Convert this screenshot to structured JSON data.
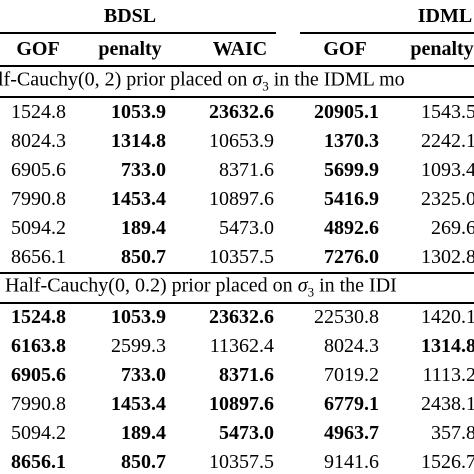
{
  "header": {
    "groups": [
      "BDSL",
      "IDML"
    ],
    "columns": [
      "GOF",
      "penalty",
      "WAIC",
      "GOF",
      "penalty"
    ]
  },
  "sections": [
    {
      "caption": {
        "before": "lf-Cauchy(0, 2) prior placed on ",
        "symbol": "σ",
        "subscript": "3",
        "after": " in the IDML mo"
      },
      "rows": [
        [
          {
            "text": "1524.8",
            "bold": false
          },
          {
            "text": "1053.9",
            "bold": true
          },
          {
            "text": "23632.6",
            "bold": true
          },
          {
            "text": "20905.1",
            "bold": true
          },
          {
            "text": "1543.5",
            "bold": false
          }
        ],
        [
          {
            "text": "8024.3",
            "bold": false
          },
          {
            "text": "1314.8",
            "bold": true
          },
          {
            "text": "10653.9",
            "bold": false
          },
          {
            "text": "1370.3",
            "bold": true
          },
          {
            "text": "2242.1",
            "bold": false
          }
        ],
        [
          {
            "text": "6905.6",
            "bold": false
          },
          {
            "text": "733.0",
            "bold": true
          },
          {
            "text": "8371.6",
            "bold": false
          },
          {
            "text": "5699.9",
            "bold": true
          },
          {
            "text": "1093.4",
            "bold": false
          }
        ],
        [
          {
            "text": "7990.8",
            "bold": false
          },
          {
            "text": "1453.4",
            "bold": true
          },
          {
            "text": "10897.6",
            "bold": false
          },
          {
            "text": "5416.9",
            "bold": true
          },
          {
            "text": "2325.0",
            "bold": false
          }
        ],
        [
          {
            "text": "5094.2",
            "bold": false
          },
          {
            "text": "189.4",
            "bold": true
          },
          {
            "text": "5473.0",
            "bold": false
          },
          {
            "text": "4892.6",
            "bold": true
          },
          {
            "text": "269.6",
            "bold": false
          }
        ],
        [
          {
            "text": "8656.1",
            "bold": false
          },
          {
            "text": "850.7",
            "bold": true
          },
          {
            "text": "10357.5",
            "bold": false
          },
          {
            "text": "7276.0",
            "bold": true
          },
          {
            "text": "1302.8",
            "bold": false
          }
        ]
      ]
    },
    {
      "caption": {
        "before": "Half-Cauchy(0, 0.2) prior placed on ",
        "symbol": "σ",
        "subscript": "3",
        "after": " in the IDI"
      },
      "rows": [
        [
          {
            "text": "1524.8",
            "bold": true
          },
          {
            "text": "1053.9",
            "bold": true
          },
          {
            "text": "23632.6",
            "bold": true
          },
          {
            "text": "22530.8",
            "bold": false
          },
          {
            "text": "1420.1",
            "bold": false
          }
        ],
        [
          {
            "text": "6163.8",
            "bold": true
          },
          {
            "text": "2599.3",
            "bold": false
          },
          {
            "text": "11362.4",
            "bold": false
          },
          {
            "text": "8024.3",
            "bold": false
          },
          {
            "text": "1314.8",
            "bold": true
          }
        ],
        [
          {
            "text": "6905.6",
            "bold": true
          },
          {
            "text": "733.0",
            "bold": true
          },
          {
            "text": "8371.6",
            "bold": true
          },
          {
            "text": "7019.2",
            "bold": false
          },
          {
            "text": "1113.2",
            "bold": false
          }
        ],
        [
          {
            "text": "7990.8",
            "bold": false
          },
          {
            "text": "1453.4",
            "bold": true
          },
          {
            "text": "10897.6",
            "bold": true
          },
          {
            "text": "6779.1",
            "bold": true
          },
          {
            "text": "2438.1",
            "bold": false
          }
        ],
        [
          {
            "text": "5094.2",
            "bold": false
          },
          {
            "text": "189.4",
            "bold": true
          },
          {
            "text": "5473.0",
            "bold": true
          },
          {
            "text": "4963.7",
            "bold": true
          },
          {
            "text": "357.8",
            "bold": false
          }
        ],
        [
          {
            "text": "8656.1",
            "bold": true
          },
          {
            "text": "850.7",
            "bold": true
          },
          {
            "text": "10357.5",
            "bold": false
          },
          {
            "text": "9141.6",
            "bold": false
          },
          {
            "text": "1526.7",
            "bold": false
          }
        ]
      ]
    }
  ]
}
